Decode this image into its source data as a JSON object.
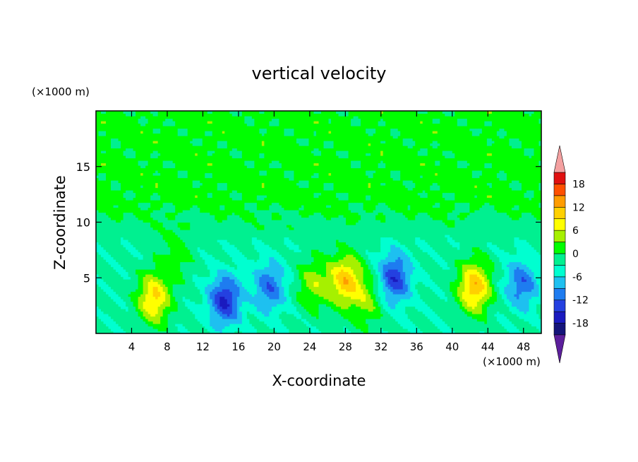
{
  "chart_data": {
    "type": "heatmap",
    "title": "vertical velocity",
    "xlabel": "X-coordinate",
    "ylabel": "Z-coordinate",
    "x_unit_label": "(×1000 m)",
    "y_unit_label": "(×1000 m)",
    "xlim": [
      0,
      50
    ],
    "ylim": [
      0,
      20
    ],
    "x_ticks": [
      "4",
      "8",
      "12",
      "16",
      "20",
      "24",
      "28",
      "32",
      "36",
      "40",
      "44",
      "48"
    ],
    "y_ticks": [
      "5",
      "10",
      "15"
    ],
    "colorbar": {
      "tick_labels": [
        "18",
        "12",
        "6",
        "0",
        "-6",
        "-12",
        "-18"
      ],
      "levels": [
        -21,
        -18,
        -15,
        -12,
        -9,
        -6,
        -3,
        0,
        3,
        6,
        9,
        12,
        15,
        18,
        21
      ],
      "colors": [
        "#5c1f9c",
        "#14147a",
        "#1a1abf",
        "#2440e0",
        "#1e7cf0",
        "#1ec0f0",
        "#00ffd0",
        "#00f090",
        "#00ff00",
        "#a6f000",
        "#ffff00",
        "#ffd000",
        "#ff9c00",
        "#ff5000",
        "#e01010",
        "#f4a0a0"
      ],
      "extend": "both"
    },
    "features": [
      {
        "x": 6.5,
        "z": 3.2,
        "value": 12
      },
      {
        "x": 14.5,
        "z": 3.0,
        "value": -13
      },
      {
        "x": 19.5,
        "z": 4.2,
        "value": -9
      },
      {
        "x": 24.5,
        "z": 4.5,
        "value": 7
      },
      {
        "x": 28.0,
        "z": 4.8,
        "value": 13
      },
      {
        "x": 33.5,
        "z": 5.0,
        "value": -12
      },
      {
        "x": 42.5,
        "z": 4.2,
        "value": 14
      },
      {
        "x": 47.8,
        "z": 4.5,
        "value": -9
      },
      {
        "x": 30.5,
        "z": 3.0,
        "value": 6
      },
      {
        "x": 9.0,
        "z": 7.0,
        "value": 4
      }
    ]
  }
}
